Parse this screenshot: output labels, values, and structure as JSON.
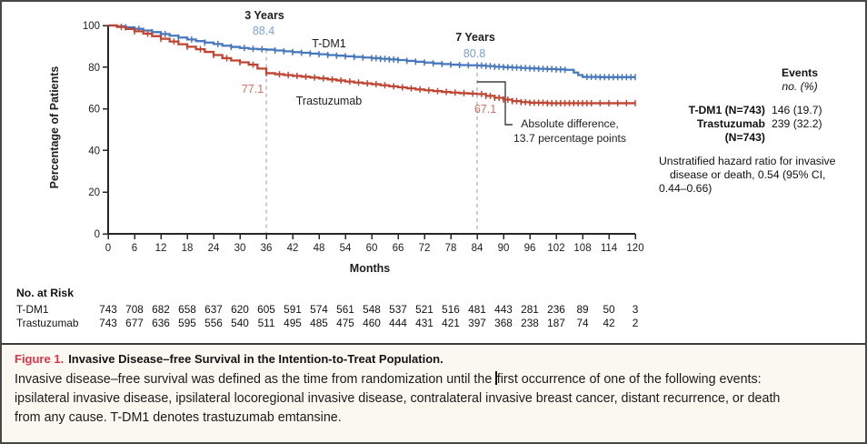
{
  "figure": {
    "accent_red": "#d6374c",
    "caption_title_prefix": "Figure 1.",
    "caption_title": "Invasive Disease–free Survival in the Intention-to-Treat Population.",
    "caption_line1_pre": "Invasive disease–free survival was defined as the time from randomization until the ",
    "caption_line1_post": "first occurrence of one of the following events:",
    "caption_line2": "ipsilateral invasive disease, ipsilateral locoregional invasive disease, contralateral invasive breast cancer, distant recurrence, or death",
    "caption_line3": "from any cause. T-DM1 denotes trastuzumab emtansine."
  },
  "chart_data": {
    "type": "line",
    "subtype": "kaplan-meier-step",
    "xlabel": "Months",
    "ylabel": "Percentage of Patients",
    "xlim": [
      0,
      120
    ],
    "ylim": [
      0,
      100
    ],
    "xticks": [
      0,
      6,
      12,
      18,
      24,
      30,
      36,
      42,
      48,
      54,
      60,
      66,
      72,
      78,
      84,
      90,
      96,
      102,
      108,
      114,
      120
    ],
    "yticks": [
      0,
      20,
      40,
      60,
      80,
      100
    ],
    "grid": false,
    "series": [
      {
        "name": "T-DM1",
        "color": "#4878bc",
        "label_color": "#7da0d2",
        "steps": [
          [
            0,
            100
          ],
          [
            2,
            99.6
          ],
          [
            4,
            99.1
          ],
          [
            6,
            98.4
          ],
          [
            8,
            97.6
          ],
          [
            10,
            96.8
          ],
          [
            12,
            95.9
          ],
          [
            14,
            95.1
          ],
          [
            16,
            94.2
          ],
          [
            18,
            93.3
          ],
          [
            20,
            92.5
          ],
          [
            22,
            91.8
          ],
          [
            24,
            91.1
          ],
          [
            26,
            90.3
          ],
          [
            28,
            89.7
          ],
          [
            30,
            89.2
          ],
          [
            32,
            88.8
          ],
          [
            34,
            88.6
          ],
          [
            36,
            88.4
          ],
          [
            38,
            88.0
          ],
          [
            40,
            87.6
          ],
          [
            42,
            87.2
          ],
          [
            44,
            86.9
          ],
          [
            46,
            86.5
          ],
          [
            48,
            86.2
          ],
          [
            50,
            85.8
          ],
          [
            52,
            85.5
          ],
          [
            54,
            85.2
          ],
          [
            56,
            84.9
          ],
          [
            58,
            84.6
          ],
          [
            60,
            84.3
          ],
          [
            62,
            84.0
          ],
          [
            64,
            83.7
          ],
          [
            66,
            83.4
          ],
          [
            68,
            83.0
          ],
          [
            70,
            82.6
          ],
          [
            72,
            82.2
          ],
          [
            74,
            81.8
          ],
          [
            76,
            81.5
          ],
          [
            78,
            81.2
          ],
          [
            80,
            81.0
          ],
          [
            82,
            80.9
          ],
          [
            84,
            80.8
          ],
          [
            86,
            80.5
          ],
          [
            88,
            80.2
          ],
          [
            90,
            80.0
          ],
          [
            92,
            79.8
          ],
          [
            94,
            79.6
          ],
          [
            96,
            79.4
          ],
          [
            98,
            79.2
          ],
          [
            100,
            79.1
          ],
          [
            102,
            78.9
          ],
          [
            104,
            78.7
          ],
          [
            106,
            77.4
          ],
          [
            107,
            76.2
          ],
          [
            108,
            75.3
          ],
          [
            112,
            75.2
          ],
          [
            120,
            75.2
          ]
        ],
        "censor_ticks": [
          4,
          7,
          10,
          13,
          16,
          19,
          22,
          25,
          28,
          31,
          33,
          35,
          38,
          40,
          42,
          44,
          46,
          48,
          50,
          52,
          54,
          56,
          58,
          60,
          61,
          62,
          63,
          64,
          65,
          66,
          68,
          70,
          72,
          74,
          76,
          78,
          80,
          82,
          84,
          85,
          86,
          87,
          88,
          89,
          90,
          91,
          92,
          93,
          94,
          95,
          96,
          97,
          98,
          99,
          100,
          101,
          102,
          103,
          104,
          109,
          110,
          111,
          112,
          113,
          114,
          115,
          116,
          117,
          118,
          119,
          120
        ]
      },
      {
        "name": "Trastuzumab",
        "color": "#bf4533",
        "label_color": "#cd7260",
        "steps": [
          [
            0,
            100
          ],
          [
            2,
            99.3
          ],
          [
            4,
            98.3
          ],
          [
            6,
            97.2
          ],
          [
            8,
            96.1
          ],
          [
            10,
            94.9
          ],
          [
            12,
            93.6
          ],
          [
            14,
            92.3
          ],
          [
            16,
            91.0
          ],
          [
            18,
            89.8
          ],
          [
            20,
            88.6
          ],
          [
            22,
            87.3
          ],
          [
            24,
            85.8
          ],
          [
            26,
            84.3
          ],
          [
            28,
            83.2
          ],
          [
            30,
            82.3
          ],
          [
            32,
            81.2
          ],
          [
            34,
            79.3
          ],
          [
            36,
            77.1
          ],
          [
            38,
            76.6
          ],
          [
            40,
            76.2
          ],
          [
            42,
            75.8
          ],
          [
            44,
            75.4
          ],
          [
            46,
            75.0
          ],
          [
            48,
            74.6
          ],
          [
            50,
            74.1
          ],
          [
            52,
            73.6
          ],
          [
            54,
            73.1
          ],
          [
            56,
            72.6
          ],
          [
            58,
            72.2
          ],
          [
            60,
            71.8
          ],
          [
            62,
            71.3
          ],
          [
            64,
            70.8
          ],
          [
            66,
            70.3
          ],
          [
            68,
            69.8
          ],
          [
            70,
            69.3
          ],
          [
            72,
            68.9
          ],
          [
            74,
            68.5
          ],
          [
            76,
            68.1
          ],
          [
            78,
            67.8
          ],
          [
            80,
            67.5
          ],
          [
            82,
            67.3
          ],
          [
            84,
            67.1
          ],
          [
            86,
            66.2
          ],
          [
            88,
            65.3
          ],
          [
            90,
            64.4
          ],
          [
            92,
            63.7
          ],
          [
            94,
            63.2
          ],
          [
            96,
            62.9
          ],
          [
            100,
            62.7
          ],
          [
            120,
            62.7
          ]
        ],
        "censor_ticks": [
          3,
          6,
          9,
          12,
          15,
          18,
          21,
          24,
          27,
          30,
          33,
          36,
          39,
          41,
          43,
          45,
          47,
          49,
          51,
          53,
          55,
          57,
          59,
          61,
          63,
          65,
          67,
          69,
          71,
          73,
          75,
          77,
          79,
          81,
          83,
          85,
          86,
          87,
          88,
          89,
          90,
          91,
          92,
          93,
          94,
          95,
          96,
          97,
          98,
          99,
          100,
          101,
          102,
          103,
          104,
          105,
          106,
          107,
          108,
          109,
          110,
          112,
          114,
          116,
          118,
          120
        ]
      }
    ],
    "annotations": {
      "timepoints": [
        {
          "label": "3 Years",
          "month": 36,
          "tdm1": "88.4",
          "trastuzumab": "77.1"
        },
        {
          "label": "7 Years",
          "month": 84,
          "tdm1": "80.8",
          "trastuzumab": "67.1"
        }
      ],
      "difference": [
        "Absolute difference,",
        "13.7 percentage points"
      ]
    },
    "events_panel": {
      "header": "Events",
      "subheader": "no. (%)",
      "rows": [
        {
          "label": "T-DM1 (N=743)",
          "value": "146 (19.7)"
        },
        {
          "label": "Trastuzumab",
          "value": "239 (32.2)"
        },
        {
          "label": "(N=743)",
          "value": ""
        }
      ],
      "hazard_lines": [
        "Unstratified hazard ratio for invasive",
        "disease or death, 0.54 (95% CI,",
        "0.44–0.66)"
      ]
    },
    "risk_table": {
      "title": "No. at Risk",
      "months": [
        0,
        6,
        12,
        18,
        24,
        30,
        36,
        42,
        48,
        54,
        60,
        66,
        72,
        78,
        84,
        90,
        96,
        102,
        108,
        114,
        120
      ],
      "rows": [
        {
          "label": "T-DM1",
          "values": [
            743,
            708,
            682,
            658,
            637,
            620,
            605,
            591,
            574,
            561,
            548,
            537,
            521,
            516,
            481,
            443,
            281,
            236,
            89,
            50,
            3
          ]
        },
        {
          "label": "Trastuzumab",
          "values": [
            743,
            677,
            636,
            595,
            556,
            540,
            511,
            495,
            485,
            475,
            460,
            444,
            431,
            421,
            397,
            368,
            238,
            187,
            74,
            42,
            2
          ]
        }
      ]
    }
  }
}
